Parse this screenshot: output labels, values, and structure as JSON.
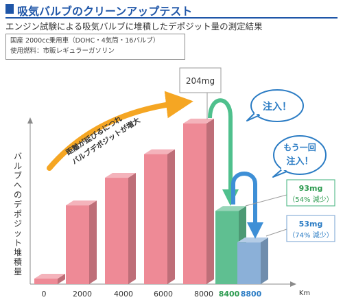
{
  "header": {
    "title": "吸気バルブのクリーンアップテスト",
    "subtitle": "エンジン試験による吸気バルブに堆積したデポジット量の測定結果"
  },
  "spec": {
    "line1": "国産 2000cc乗用車（DOHC・4気筒・16バルブ）",
    "line2": "使用燃料：市販レギュラーガソリン"
  },
  "colors": {
    "title": "#1f56a8",
    "bar_pink": "#ee8a96",
    "bar_green": "#5fbf91",
    "bar_blue": "#8bb0d8",
    "green_text": "#2c9a4f",
    "blue_text": "#2b7cc4",
    "arrow_orange": "#f5a623"
  },
  "chart_data": {
    "type": "bar",
    "categories": [
      "0",
      "2000",
      "4000",
      "6000",
      "8000",
      "8400",
      "8800"
    ],
    "values": [
      5,
      100,
      135,
      165,
      204,
      93,
      53
    ],
    "ylabel": "バルブへのデポジット堆積量",
    "xunit": "Km",
    "ylim": [
      0,
      230
    ],
    "grid": false,
    "annotations": {
      "peak": "204mg",
      "trend": [
        "距離が延びるにつれ",
        "バルブデポジットが増大"
      ],
      "inject1": "注入！",
      "inject2": [
        "もう一回",
        "注入！"
      ],
      "after1": {
        "value": "93mg",
        "pct": "（54% 減少）"
      },
      "after2": {
        "value": "53mg",
        "pct": "（74% 減少）"
      }
    }
  }
}
